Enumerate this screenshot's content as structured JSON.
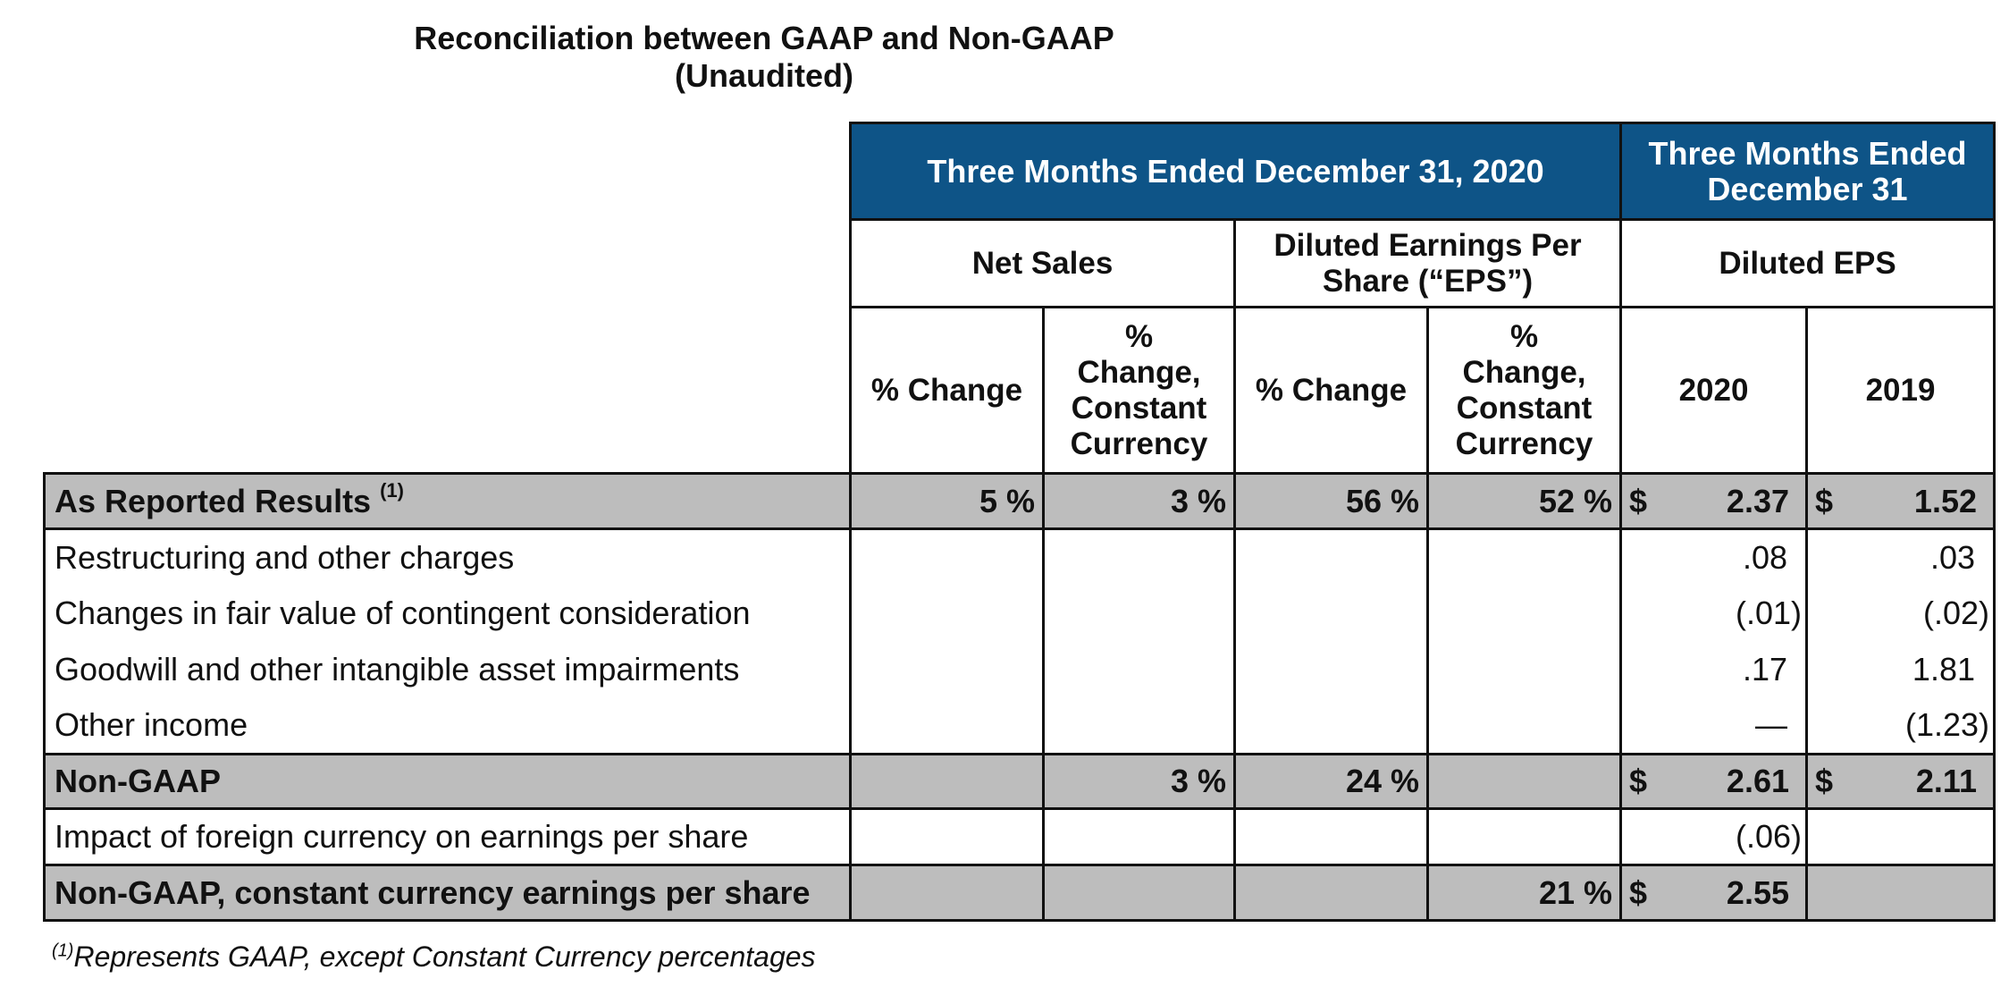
{
  "title": "Reconciliation between GAAP and Non-GAAP",
  "subtitle": "(Unaudited)",
  "header": {
    "group1": "Three Months Ended December 31, 2020",
    "group2": "Three Months Ended December 31",
    "net_sales": "Net Sales",
    "diluted_eps_long": "Diluted Earnings Per Share (“EPS”)",
    "diluted_eps": "Diluted EPS",
    "col_pct_change": "% Change",
    "col_pct_cc": "% Change, Constant Currency",
    "col_2020": "2020",
    "col_2019": "2019"
  },
  "rows": {
    "as_reported": {
      "label": "As Reported Results",
      "fn": "(1)",
      "ns_pct": "5 %",
      "ns_cc": "3 %",
      "eps_pct": "56 %",
      "eps_cc": "52 %",
      "y2020": "2.37",
      "y2019": "1.52"
    },
    "restructuring": {
      "label": "Restructuring and other charges",
      "y2020": ".08",
      "y2019": ".03"
    },
    "contingent": {
      "label": "Changes in fair value of contingent consideration",
      "y2020": "(.01)",
      "y2019": "(.02)"
    },
    "goodwill": {
      "label": "Goodwill and other intangible asset impairments",
      "y2020": ".17",
      "y2019": "1.81"
    },
    "other_income": {
      "label": "Other income",
      "y2020": "—",
      "y2019": "(1.23)"
    },
    "non_gaap": {
      "label": "Non-GAAP",
      "ns_cc": "3 %",
      "eps_pct": "24 %",
      "y2020": "2.61",
      "y2019": "2.11"
    },
    "fx_impact": {
      "label": "Impact of foreign currency on earnings per share",
      "y2020": "(.06)"
    },
    "non_gaap_cc": {
      "label": "Non-GAAP, constant currency earnings per share",
      "eps_cc": "21 %",
      "y2020": "2.55"
    }
  },
  "currency_symbol": "$",
  "footnote": {
    "marker": "(1)",
    "text": "Represents GAAP, except Constant Currency percentages"
  }
}
